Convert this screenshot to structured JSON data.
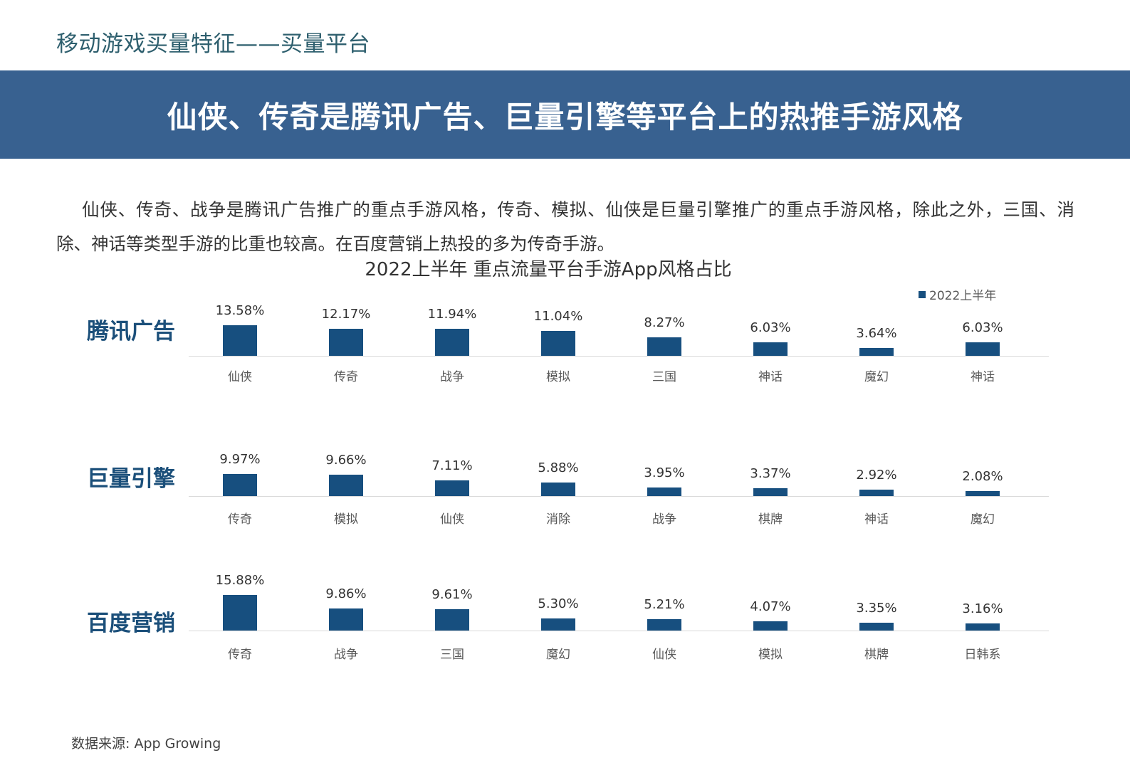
{
  "page": {
    "section_title": "移动游戏买量特征——买量平台",
    "banner_title": "仙侠、传奇是腾讯广告、巨量引擎等平台上的热推手游风格",
    "description": "仙侠、传奇、战争是腾讯广告推广的重点手游风格，传奇、模拟、仙侠是巨量引擎推广的重点手游风格，除此之外，三国、消除、神话等类型手游的比重也较高。在百度营销上热投的多为传奇手游。",
    "source": "数据来源: App Growing"
  },
  "colors": {
    "banner": "#386190",
    "bar": "#174f7f",
    "section_title": "#2e5f6e",
    "platform_label": "#1b4f7a"
  },
  "chart_data": {
    "type": "bar",
    "title": "2022上半年 重点流量平台手游App风格占比",
    "legend": [
      "2022上半年"
    ],
    "legend_position": "top-right",
    "unit": "%",
    "grid": false,
    "panels": [
      {
        "platform": "腾讯广告",
        "categories": [
          "仙侠",
          "传奇",
          "战争",
          "模拟",
          "三国",
          "神话",
          "魔幻",
          "神话"
        ],
        "values": [
          13.58,
          12.17,
          11.94,
          11.04,
          8.27,
          6.03,
          3.64,
          6.03
        ],
        "labels": [
          "13.58%",
          "12.17%",
          "11.94%",
          "11.04%",
          "8.27%",
          "6.03%",
          "3.64%",
          "6.03%"
        ]
      },
      {
        "platform": "巨量引擎",
        "categories": [
          "传奇",
          "模拟",
          "仙侠",
          "消除",
          "战争",
          "棋牌",
          "神话",
          "魔幻"
        ],
        "values": [
          9.97,
          9.66,
          7.11,
          5.88,
          3.95,
          3.37,
          2.92,
          2.08
        ],
        "labels": [
          "9.97%",
          "9.66%",
          "7.11%",
          "5.88%",
          "3.95%",
          "3.37%",
          "2.92%",
          "2.08%"
        ]
      },
      {
        "platform": "百度营销",
        "categories": [
          "传奇",
          "战争",
          "三国",
          "魔幻",
          "仙侠",
          "模拟",
          "棋牌",
          "日韩系"
        ],
        "values": [
          15.88,
          9.86,
          9.61,
          5.3,
          5.21,
          4.07,
          3.35,
          3.16
        ],
        "labels": [
          "15.88%",
          "9.86%",
          "9.61%",
          "5.30%",
          "5.21%",
          "4.07%",
          "3.35%",
          "3.16%"
        ]
      }
    ]
  }
}
